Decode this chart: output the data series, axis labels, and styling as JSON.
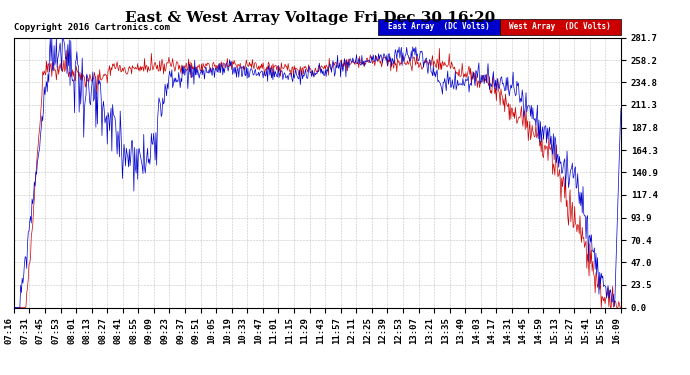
{
  "title": "East & West Array Voltage Fri Dec 30 16:20",
  "copyright": "Copyright 2016 Cartronics.com",
  "legend_east": "East Array  (DC Volts)",
  "legend_west": "West Array  (DC Volts)",
  "east_color": "#0000cc",
  "west_color": "#cc0000",
  "bg_color": "#ffffff",
  "plot_bg_color": "#ffffff",
  "grid_color": "#aaaaaa",
  "yticks": [
    0.0,
    23.5,
    47.0,
    70.4,
    93.9,
    117.4,
    140.9,
    164.3,
    187.8,
    211.3,
    234.8,
    258.2,
    281.7
  ],
  "ymin": 0.0,
  "ymax": 281.7,
  "x_labels": [
    "07:16",
    "07:31",
    "07:45",
    "07:53",
    "08:01",
    "08:13",
    "08:27",
    "08:41",
    "08:55",
    "09:09",
    "09:23",
    "09:37",
    "09:51",
    "10:05",
    "10:19",
    "10:33",
    "10:47",
    "11:01",
    "11:15",
    "11:29",
    "11:43",
    "11:57",
    "12:11",
    "12:25",
    "12:39",
    "12:53",
    "13:07",
    "13:21",
    "13:35",
    "13:49",
    "14:03",
    "14:17",
    "14:31",
    "14:45",
    "14:59",
    "15:13",
    "15:27",
    "15:41",
    "15:55",
    "16:09"
  ],
  "title_fontsize": 11,
  "label_fontsize": 6.5,
  "copyright_fontsize": 6.5
}
